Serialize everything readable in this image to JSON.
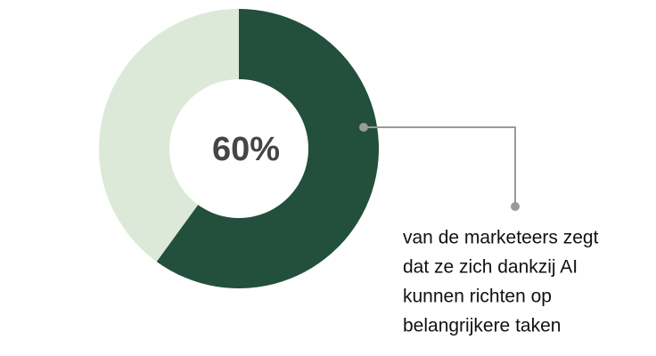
{
  "chart_data": {
    "type": "donut",
    "values": [
      60,
      40
    ],
    "value_labels": [
      "60%",
      null
    ],
    "colors": [
      "#234f3d",
      "#dce9d8"
    ],
    "annotation": [
      "van de marketeers zegt",
      "dat ze zich dankzij AI",
      "kunnen richten op",
      "belangrijkere taken"
    ]
  }
}
